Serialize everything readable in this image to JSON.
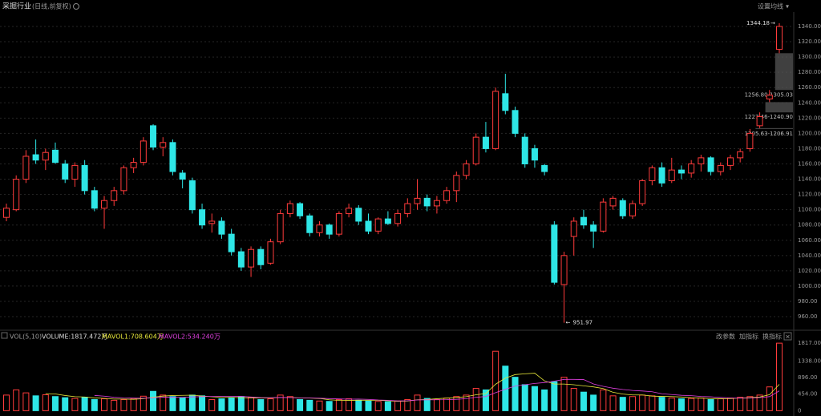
{
  "header": {
    "title": "采掘行业",
    "subtitle": "(日线,前复权)",
    "ma_button": "设置均线"
  },
  "chart_data": [
    {
      "type": "candlestick",
      "up_color": "#ff3b3b",
      "down_color": "#2ee6e6",
      "ohlc": [
        [
          1090,
          1108,
          1085,
          1102
        ],
        [
          1100,
          1145,
          1098,
          1140
        ],
        [
          1140,
          1178,
          1135,
          1170
        ],
        [
          1172,
          1192,
          1160,
          1165
        ],
        [
          1165,
          1180,
          1152,
          1175
        ],
        [
          1178,
          1188,
          1160,
          1162
        ],
        [
          1160,
          1165,
          1135,
          1140
        ],
        [
          1140,
          1162,
          1130,
          1158
        ],
        [
          1158,
          1165,
          1120,
          1125
        ],
        [
          1125,
          1130,
          1098,
          1102
        ],
        [
          1102,
          1118,
          1075,
          1112
        ],
        [
          1112,
          1130,
          1105,
          1125
        ],
        [
          1125,
          1158,
          1120,
          1155
        ],
        [
          1155,
          1168,
          1148,
          1162
        ],
        [
          1162,
          1195,
          1158,
          1190
        ],
        [
          1210,
          1212,
          1178,
          1182
        ],
        [
          1182,
          1195,
          1170,
          1188
        ],
        [
          1188,
          1192,
          1145,
          1150
        ],
        [
          1148,
          1152,
          1128,
          1140
        ],
        [
          1138,
          1142,
          1095,
          1100
        ],
        [
          1100,
          1108,
          1075,
          1080
        ],
        [
          1082,
          1095,
          1070,
          1085
        ],
        [
          1085,
          1090,
          1062,
          1068
        ],
        [
          1068,
          1075,
          1040,
          1045
        ],
        [
          1045,
          1050,
          1020,
          1025
        ],
        [
          1025,
          1052,
          1012,
          1048
        ],
        [
          1048,
          1052,
          1022,
          1028
        ],
        [
          1030,
          1062,
          1028,
          1058
        ],
        [
          1058,
          1100,
          1055,
          1095
        ],
        [
          1095,
          1112,
          1090,
          1108
        ],
        [
          1108,
          1110,
          1088,
          1092
        ],
        [
          1092,
          1095,
          1065,
          1070
        ],
        [
          1070,
          1085,
          1065,
          1080
        ],
        [
          1080,
          1082,
          1062,
          1068
        ],
        [
          1068,
          1098,
          1065,
          1095
        ],
        [
          1095,
          1108,
          1090,
          1102
        ],
        [
          1102,
          1106,
          1080,
          1085
        ],
        [
          1085,
          1095,
          1068,
          1072
        ],
        [
          1072,
          1090,
          1068,
          1088
        ],
        [
          1088,
          1098,
          1080,
          1082
        ],
        [
          1082,
          1100,
          1078,
          1095
        ],
        [
          1095,
          1115,
          1090,
          1108
        ],
        [
          1108,
          1140,
          1100,
          1115
        ],
        [
          1115,
          1120,
          1098,
          1105
        ],
        [
          1105,
          1118,
          1095,
          1112
        ],
        [
          1112,
          1130,
          1108,
          1125
        ],
        [
          1125,
          1150,
          1110,
          1145
        ],
        [
          1145,
          1165,
          1140,
          1160
        ],
        [
          1160,
          1200,
          1158,
          1195
        ],
        [
          1195,
          1215,
          1175,
          1180
        ],
        [
          1180,
          1260,
          1178,
          1255
        ],
        [
          1252,
          1278,
          1225,
          1230
        ],
        [
          1230,
          1235,
          1195,
          1200
        ],
        [
          1195,
          1200,
          1155,
          1160
        ],
        [
          1180,
          1185,
          1155,
          1165
        ],
        [
          1158,
          1160,
          1145,
          1150
        ],
        [
          1080,
          1085,
          1002,
          1005
        ],
        [
          1002,
          1045,
          951.97,
          1040
        ],
        [
          1065,
          1090,
          1040,
          1085
        ],
        [
          1090,
          1100,
          1075,
          1080
        ],
        [
          1080,
          1085,
          1050,
          1072
        ],
        [
          1072,
          1115,
          1070,
          1110
        ],
        [
          1105,
          1118,
          1100,
          1115
        ],
        [
          1112,
          1115,
          1088,
          1092
        ],
        [
          1092,
          1112,
          1088,
          1108
        ],
        [
          1108,
          1140,
          1105,
          1138
        ],
        [
          1138,
          1158,
          1132,
          1155
        ],
        [
          1155,
          1162,
          1130,
          1135
        ],
        [
          1138,
          1168,
          1135,
          1152
        ],
        [
          1152,
          1158,
          1140,
          1148
        ],
        [
          1148,
          1165,
          1142,
          1160
        ],
        [
          1160,
          1172,
          1150,
          1168
        ],
        [
          1168,
          1170,
          1145,
          1150
        ],
        [
          1150,
          1162,
          1145,
          1158
        ],
        [
          1158,
          1172,
          1152,
          1168
        ],
        [
          1168,
          1180,
          1162,
          1176
        ],
        [
          1180,
          1205.63,
          1176,
          1200
        ],
        [
          1210,
          1227.46,
          1206.91,
          1222
        ],
        [
          1245,
          1256.8,
          1240.9,
          1250
        ],
        [
          1310,
          1344.18,
          1305.03,
          1340
        ]
      ],
      "ylim": [
        944.3,
        1358.9
      ],
      "yticks": [
        {
          "value": 960,
          "label": "960.00"
        },
        {
          "value": 980,
          "label": "980.00"
        },
        {
          "value": 1000,
          "label": "1000.00"
        },
        {
          "value": 1020,
          "label": "1020.00"
        },
        {
          "value": 1040,
          "label": "1040.00"
        },
        {
          "value": 1060,
          "label": "1060.00"
        },
        {
          "value": 1080,
          "label": "1080.00"
        },
        {
          "value": 1100,
          "label": "1100.00"
        },
        {
          "value": 1120,
          "label": "1120.00"
        },
        {
          "value": 1140,
          "label": "1140.00"
        },
        {
          "value": 1160,
          "label": "1160.00"
        },
        {
          "value": 1180,
          "label": "1180.00"
        },
        {
          "value": 1200,
          "label": "1200.00"
        },
        {
          "value": 1220,
          "label": "1220.00"
        },
        {
          "value": 1240,
          "label": "1240.00"
        },
        {
          "value": 1260,
          "label": "1260.00"
        },
        {
          "value": 1280,
          "label": "1280.00"
        },
        {
          "value": 1300,
          "label": "1300.00"
        },
        {
          "value": 1320,
          "label": "1320.00"
        },
        {
          "value": 1340,
          "label": "1340.00"
        }
      ],
      "grid": true,
      "annotations": [
        "1344.18",
        "951.97"
      ],
      "gap_labels": [
        "1256.80-1305.03",
        "1227.46-1240.90",
        "1205.63-1206.91"
      ]
    },
    {
      "type": "bar",
      "legend_title": "VOL(5,10)",
      "legend_labels": [
        "VOLUME:1817.472万",
        "MAVOL1:708.604万",
        "MAVOL2:534.240万"
      ],
      "buttons": [
        "改参数",
        "加指标",
        "换指标"
      ],
      "values": [
        420,
        560,
        480,
        400,
        430,
        380,
        350,
        330,
        360,
        300,
        320,
        280,
        300,
        330,
        390,
        520,
        420,
        380,
        350,
        420,
        400,
        300,
        320,
        350,
        380,
        360,
        300,
        320,
        420,
        380,
        300,
        280,
        260,
        250,
        300,
        320,
        280,
        260,
        250,
        240,
        260,
        300,
        420,
        330,
        300,
        340,
        380,
        420,
        600,
        560,
        1600,
        1200,
        900,
        700,
        650,
        560,
        780,
        900,
        600,
        500,
        420,
        560,
        400,
        360,
        380,
        420,
        400,
        360,
        340,
        320,
        330,
        340,
        300,
        320,
        340,
        360,
        380,
        420,
        640,
        1817.472
      ],
      "series": [
        {
          "color": "#e8e83a",
          "values": [
            null,
            null,
            null,
            null,
            458,
            450,
            408,
            378,
            370,
            344,
            332,
            312,
            312,
            306,
            324,
            364,
            392,
            408,
            412,
            418,
            394,
            374,
            358,
            358,
            350,
            342,
            346,
            344,
            356,
            356,
            344,
            340,
            328,
            294,
            278,
            276,
            282,
            282,
            282,
            266,
            250,
            260,
            294,
            302,
            322,
            338,
            354,
            378,
            428,
            460,
            712,
            876,
            972,
            992,
            1010,
            802,
            718,
            718,
            698,
            668,
            640,
            596,
            496,
            448,
            424,
            424,
            392,
            384,
            380,
            368,
            350,
            338,
            326,
            322,
            326,
            340,
            350,
            368,
            432,
            708.604
          ]
        },
        {
          "color": "#e040e0",
          "values": [
            null,
            null,
            null,
            null,
            null,
            null,
            null,
            null,
            null,
            411,
            391,
            360,
            345,
            338,
            334,
            348,
            362,
            360,
            359,
            371,
            379,
            383,
            383,
            385,
            384,
            368,
            352,
            351,
            357,
            353,
            343,
            343,
            336,
            325,
            317,
            310,
            313,
            305,
            288,
            280,
            263,
            268,
            288,
            292,
            294,
            296,
            306,
            324,
            361,
            381,
            486,
            576,
            663,
            699,
            734,
            756,
            795,
            843,
            843,
            837,
            719,
            655,
            605,
            571,
            544,
            530,
            510,
            456,
            434,
            414,
            405,
            383,
            373,
            357,
            343,
            337,
            340,
            353,
            379,
            534.24
          ]
        }
      ],
      "ylim": [
        -100,
        1885
      ],
      "yticks": [
        0,
        {
          "value": 454,
          "label": "454.00"
        },
        {
          "value": 896,
          "label": "896.00"
        },
        {
          "value": 1338,
          "label": "1338.00"
        },
        {
          "value": 1817,
          "label": "1817.00"
        }
      ]
    }
  ]
}
